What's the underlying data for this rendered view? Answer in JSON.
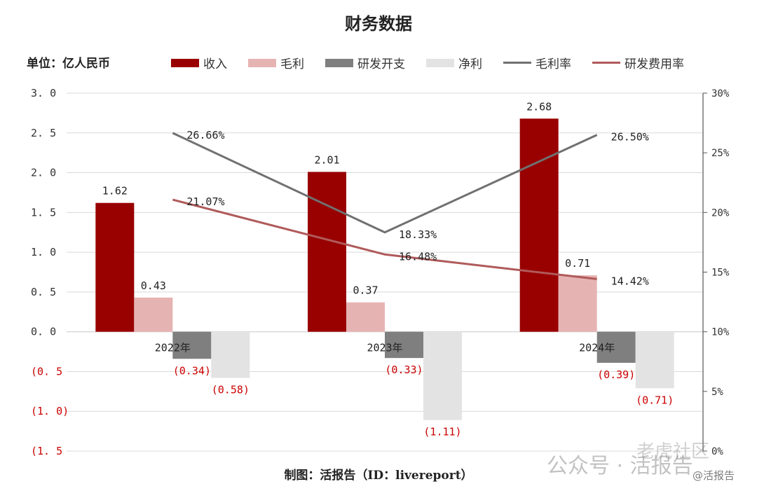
{
  "chart_data": {
    "type": "bar",
    "title": "财务数据",
    "unit_label": "单位：亿人民币",
    "categories": [
      "2022年",
      "2023年",
      "2024年"
    ],
    "series": [
      {
        "name": "收入",
        "kind": "bar",
        "color": "#990000",
        "values": [
          1.62,
          2.01,
          2.68
        ],
        "labels": [
          "1.62",
          "2.01",
          "2.68"
        ]
      },
      {
        "name": "毛利",
        "kind": "bar",
        "color": "#e6b3b3",
        "values": [
          0.43,
          0.37,
          0.71
        ],
        "labels": [
          "0.43",
          "0.37",
          "0.71"
        ]
      },
      {
        "name": "研发开支",
        "kind": "bar",
        "color": "#7f7f7f",
        "values": [
          -0.34,
          -0.33,
          -0.39
        ],
        "labels": [
          "(0.34)",
          "(0.33)",
          "(0.39)"
        ]
      },
      {
        "name": "净利",
        "kind": "bar",
        "color": "#e3e3e3",
        "values": [
          -0.58,
          -1.11,
          -0.71
        ],
        "labels": [
          "(0.58)",
          "(1.11)",
          "(0.71)"
        ]
      },
      {
        "name": "毛利率",
        "kind": "line",
        "axis": "right",
        "color": "#707070",
        "values": [
          26.66,
          18.33,
          26.5
        ],
        "labels": [
          "26.66%",
          "18.33%",
          "26.50%"
        ]
      },
      {
        "name": "研发费用率",
        "kind": "line",
        "axis": "right",
        "color": "#b05a5a",
        "values": [
          21.07,
          16.48,
          14.42
        ],
        "labels": [
          "21.07%",
          "16.48%",
          "14.42%"
        ]
      }
    ],
    "left_axis": {
      "ylim": [
        -1.5,
        3.0
      ],
      "ticks": [
        3.0,
        2.5,
        2.0,
        1.5,
        1.0,
        0.5,
        0.0,
        -0.5,
        -1.0,
        -1.5
      ],
      "tick_labels": [
        "3. 0",
        "2. 5",
        "2. 0",
        "1. 5",
        "1. 0",
        "0. 5",
        "0. 0",
        "(0. 5",
        "(1. 0)",
        "(1. 5"
      ]
    },
    "right_axis": {
      "ylim": [
        0,
        30
      ],
      "ticks": [
        30,
        25,
        20,
        15,
        10,
        5,
        0
      ],
      "tick_labels": [
        "30%",
        "25%",
        "20%",
        "15%",
        "10%",
        "5%",
        "0%"
      ]
    },
    "grid": true,
    "legend_position": "top"
  },
  "footer": {
    "source": "制图：活报告（ID：livereport）",
    "watermark_1": "公众号 · 活报告",
    "watermark_2": "老虎社区",
    "watermark_3": "@活报告"
  },
  "colors": {
    "negative_label": "#cc0000",
    "grid": "#d9d9d9"
  }
}
